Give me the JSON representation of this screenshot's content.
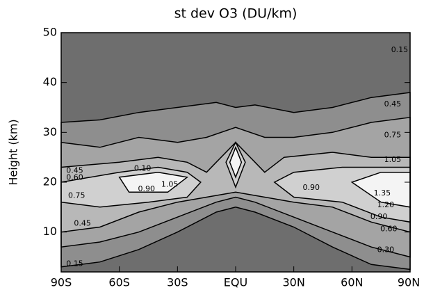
{
  "chart_data": {
    "type": "contour",
    "title": "st dev O3 (DU/km)",
    "y_label": "Height (km)",
    "background": "#6e6e6e",
    "xlim": [
      -90,
      90
    ],
    "xticks": [
      {
        "value": -90,
        "label": "90S"
      },
      {
        "value": -60,
        "label": "60S"
      },
      {
        "value": -30,
        "label": "30S"
      },
      {
        "value": 0,
        "label": "EQU"
      },
      {
        "value": 30,
        "label": "30N"
      },
      {
        "value": 60,
        "label": "60N"
      },
      {
        "value": 90,
        "label": "90N"
      }
    ],
    "ylim": [
      2,
      50
    ],
    "yticks": [
      10,
      20,
      30,
      40,
      50
    ],
    "contours": [
      {
        "level": 0.15,
        "color": "#8e8e8e",
        "polygons": [
          [
            [
              -90,
              32
            ],
            [
              -70,
              32.5
            ],
            [
              -50,
              34
            ],
            [
              -30,
              35
            ],
            [
              -10,
              36
            ],
            [
              0,
              35
            ],
            [
              10,
              35.5
            ],
            [
              30,
              34
            ],
            [
              50,
              35
            ],
            [
              70,
              37
            ],
            [
              90,
              38
            ],
            [
              90,
              2.5
            ],
            [
              70,
              3.5
            ],
            [
              50,
              7
            ],
            [
              30,
              11
            ],
            [
              10,
              14
            ],
            [
              0,
              15
            ],
            [
              -10,
              14
            ],
            [
              -30,
              10
            ],
            [
              -50,
              6.5
            ],
            [
              -70,
              4
            ],
            [
              -90,
              3
            ]
          ]
        ]
      },
      {
        "level": 0.3,
        "color": "#a4a4a4",
        "polygons": [
          [
            [
              -90,
              28
            ],
            [
              -70,
              27
            ],
            [
              -50,
              29
            ],
            [
              -30,
              28
            ],
            [
              -15,
              29
            ],
            [
              0,
              31
            ],
            [
              15,
              29
            ],
            [
              30,
              29
            ],
            [
              50,
              30
            ],
            [
              70,
              32
            ],
            [
              90,
              33
            ],
            [
              90,
              5
            ],
            [
              70,
              7
            ],
            [
              50,
              10
            ],
            [
              30,
              13
            ],
            [
              10,
              16
            ],
            [
              0,
              17
            ],
            [
              -10,
              16
            ],
            [
              -30,
              13
            ],
            [
              -50,
              10
            ],
            [
              -70,
              8
            ],
            [
              -90,
              7
            ]
          ]
        ]
      },
      {
        "level": 0.45,
        "color": "#b8b8b8",
        "polygons": [
          [
            [
              -90,
              23
            ],
            [
              -60,
              24
            ],
            [
              -40,
              25
            ],
            [
              -25,
              24
            ],
            [
              -15,
              22
            ],
            [
              -10,
              24
            ],
            [
              0,
              28
            ],
            [
              10,
              24
            ],
            [
              15,
              22
            ],
            [
              25,
              25
            ],
            [
              50,
              26
            ],
            [
              70,
              25
            ],
            [
              90,
              25
            ],
            [
              90,
              10
            ],
            [
              70,
              12
            ],
            [
              50,
              15
            ],
            [
              30,
              16
            ],
            [
              15,
              17
            ],
            [
              0,
              18
            ],
            [
              -15,
              17
            ],
            [
              -30,
              16
            ],
            [
              -50,
              14
            ],
            [
              -70,
              11
            ],
            [
              -90,
              10
            ]
          ]
        ]
      },
      {
        "level": 0.75,
        "color": "#d0d0d0",
        "polygons": [
          [
            [
              -90,
              20
            ],
            [
              -60,
              22
            ],
            [
              -40,
              23
            ],
            [
              -25,
              22
            ],
            [
              -18,
              20
            ],
            [
              -25,
              17
            ],
            [
              -45,
              16
            ],
            [
              -70,
              15
            ],
            [
              -90,
              16
            ]
          ],
          [
            [
              -5,
              24
            ],
            [
              0,
              28
            ],
            [
              5,
              24
            ],
            [
              0,
              19
            ]
          ],
          [
            [
              20,
              20
            ],
            [
              30,
              22
            ],
            [
              55,
              23
            ],
            [
              75,
              23
            ],
            [
              90,
              23
            ],
            [
              90,
              12
            ],
            [
              75,
              13
            ],
            [
              55,
              16
            ],
            [
              30,
              17
            ]
          ]
        ]
      },
      {
        "level": 1.05,
        "color": "#f4f4f4",
        "polygons": [
          [
            [
              -60,
              21
            ],
            [
              -40,
              22
            ],
            [
              -25,
              21
            ],
            [
              -35,
              18
            ],
            [
              -55,
              18
            ]
          ],
          [
            [
              -3,
              24
            ],
            [
              0,
              27
            ],
            [
              3,
              24
            ],
            [
              0,
              21
            ]
          ],
          [
            [
              60,
              20
            ],
            [
              75,
              22
            ],
            [
              90,
              22
            ],
            [
              90,
              15
            ],
            [
              75,
              16
            ]
          ]
        ]
      }
    ],
    "contour_labels": [
      {
        "value": 0.15,
        "label": "0.15",
        "lat": 84.6,
        "h": 46.5
      },
      {
        "value": 0.45,
        "label": "0.45",
        "lat": 81,
        "h": 35.6
      },
      {
        "value": 0.75,
        "label": "0.75",
        "lat": 81,
        "h": 29.4
      },
      {
        "value": 1.05,
        "label": "1.05",
        "lat": 81,
        "h": 24.5
      },
      {
        "value": 1.35,
        "label": "1.35",
        "lat": 75.6,
        "h": 17.8
      },
      {
        "value": 1.2,
        "label": "1.20",
        "lat": 77.4,
        "h": 15.4
      },
      {
        "value": 0.9,
        "label": "0.90",
        "lat": 73.9,
        "h": 13
      },
      {
        "value": 0.6,
        "label": "0.60",
        "lat": 79,
        "h": 10.6
      },
      {
        "value": 0.3,
        "label": "0.30",
        "lat": 77.4,
        "h": 6.4
      },
      {
        "value": 0.1,
        "label": "0.10",
        "lat": -48,
        "h": 22.7
      },
      {
        "value": 0.45,
        "label": "0.45",
        "lat": -83,
        "h": 22.3
      },
      {
        "value": 0.6,
        "label": "0.60",
        "lat": -83,
        "h": 20.9
      },
      {
        "value": 0.75,
        "label": "0.75",
        "lat": -82,
        "h": 17.3
      },
      {
        "value": 0.9,
        "label": "0.90",
        "lat": -46,
        "h": 18.6
      },
      {
        "value": 1.05,
        "label": "1.05",
        "lat": -34,
        "h": 19.5
      },
      {
        "value": 0.9,
        "label": "0.90",
        "lat": 39,
        "h": 18.9
      },
      {
        "value": 0.45,
        "label": "0.45",
        "lat": -79,
        "h": 11.7
      },
      {
        "value": 0.15,
        "label": "0.15",
        "lat": -83,
        "h": 3.6
      }
    ]
  }
}
